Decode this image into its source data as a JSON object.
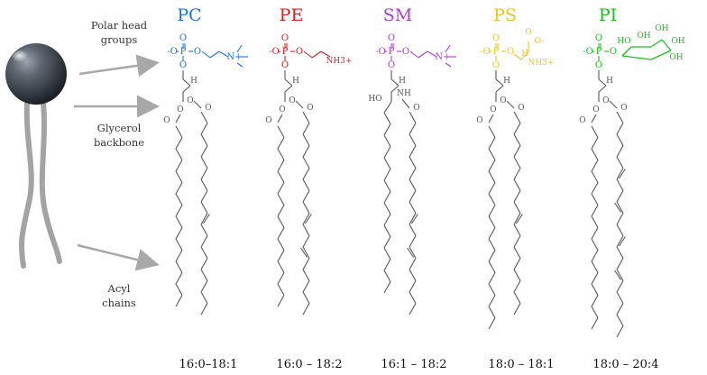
{
  "callouts": {
    "polar_head": "Polar head\ngroups",
    "glycerol": "Glycerol\nbackbone",
    "acyl": "Acyl\nchains"
  },
  "lipids": [
    {
      "abbr": "PC",
      "color": "#1a73e8",
      "composition": "16:0–18:1",
      "head_groups": [
        "O",
        "-O",
        "P",
        "O",
        "N+"
      ]
    },
    {
      "abbr": "PE",
      "color": "#e8191b",
      "composition": "16:0 – 18:2",
      "head_groups": [
        "O",
        "-O",
        "P",
        "O",
        "NH3+"
      ]
    },
    {
      "abbr": "SM",
      "color": "#b03ad6",
      "composition": "16:1 – 18:2",
      "head_groups": [
        "O",
        "-O",
        "P",
        "O",
        "N+"
      ]
    },
    {
      "abbr": "PS",
      "color": "#f2c21b",
      "composition": "18:0 – 18:1",
      "head_groups": [
        "O",
        "-O",
        "P",
        "O",
        "O",
        "O-",
        "H",
        "NH3+"
      ]
    },
    {
      "abbr": "PI",
      "color": "#18c118",
      "composition": "18:0 – 20:4",
      "head_groups": [
        "O",
        "-O",
        "P",
        "O",
        "HO",
        "OH",
        "OH",
        "OH",
        "OH"
      ]
    }
  ],
  "backbone_labels": {
    "H": "H",
    "O": "O",
    "HO": "HO",
    "NH": "NH"
  }
}
